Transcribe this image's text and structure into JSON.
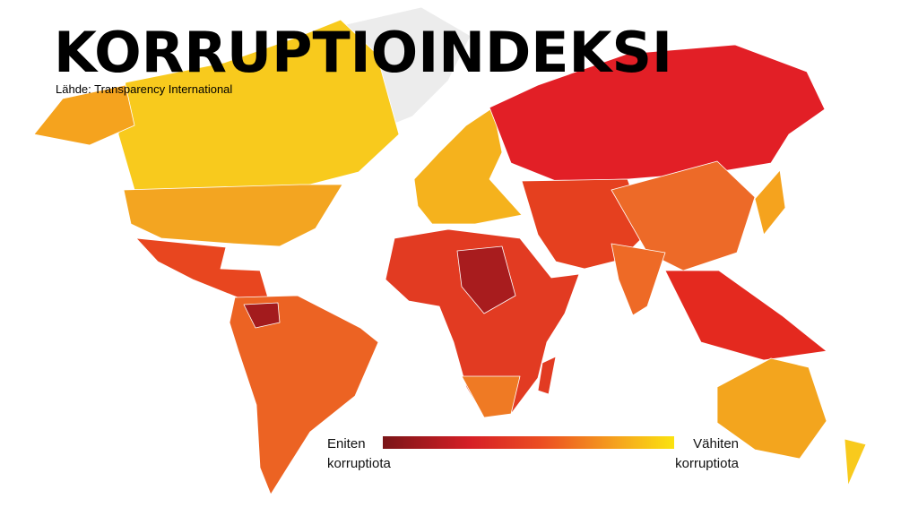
{
  "title": "KORRUPTIOINDEKSI",
  "source": "Lähde: Transparency International",
  "legend": {
    "left": [
      "Eniten",
      "korruptiota"
    ],
    "right": [
      "Vähiten",
      "korruptiota"
    ]
  }
}
